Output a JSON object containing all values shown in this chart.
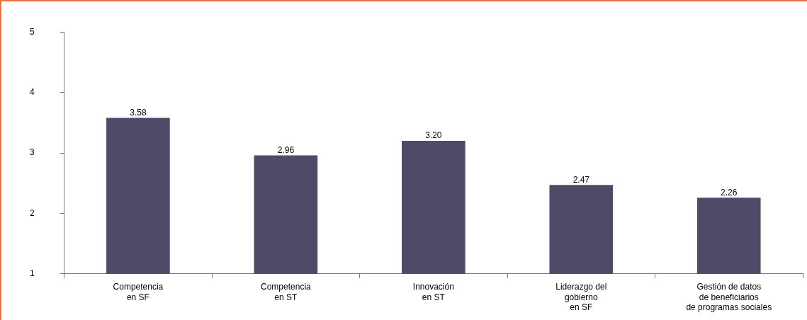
{
  "chart_data": {
    "type": "bar",
    "categories": [
      "Competencia\nen SF",
      "Competencia\nen ST",
      "Innovación\nen ST",
      "Liderazgo del\ngobierno\nen SF",
      "Gestión de datos\nde beneficiarios\nde programas sociales"
    ],
    "values": [
      3.58,
      2.96,
      3.2,
      2.47,
      2.26
    ],
    "value_labels": [
      "3.58",
      "2.96",
      "3.20",
      "2.47",
      "2.26"
    ],
    "color": "#504a68",
    "ylim": [
      1,
      5
    ],
    "yticks": [
      1,
      2,
      3,
      4,
      5
    ],
    "grid": false,
    "legend": false
  }
}
